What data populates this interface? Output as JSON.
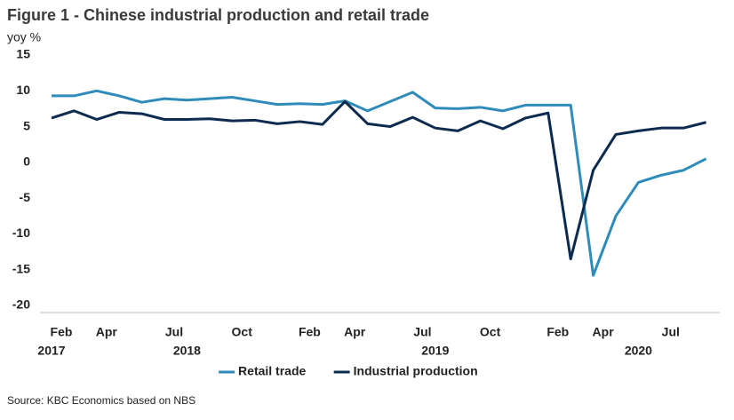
{
  "chart_data": {
    "type": "line",
    "title": "Figure 1 - Chinese industrial production and retail trade",
    "y_axis_label": "yoy %",
    "source": "Source: KBC Economics based on NBS",
    "categories": [
      "Feb",
      null,
      "Apr",
      null,
      null,
      "Jul",
      null,
      null,
      "Oct",
      null,
      null,
      "Feb",
      null,
      "Apr",
      null,
      null,
      "Jul",
      null,
      null,
      "Oct",
      null,
      null,
      "Feb",
      null,
      "Apr",
      null,
      null,
      "Jul",
      null,
      null
    ],
    "year_categories": [
      "2017",
      null,
      null,
      null,
      null,
      null,
      "2018",
      null,
      null,
      null,
      null,
      null,
      null,
      null,
      null,
      null,
      null,
      "2019",
      null,
      null,
      null,
      null,
      null,
      null,
      null,
      null,
      "2020",
      null,
      null,
      null
    ],
    "series": [
      {
        "name": "Retail trade",
        "color": "#2e8bba",
        "values": [
          9.3,
          9.3,
          10.0,
          9.3,
          8.4,
          8.9,
          8.7,
          8.9,
          9.1,
          8.6,
          8.1,
          8.2,
          8.1,
          8.6,
          7.2,
          8.5,
          9.8,
          7.6,
          7.5,
          7.7,
          7.2,
          8.0,
          8.0,
          8.0,
          -15.8,
          -7.5,
          -2.8,
          -1.8,
          -1.1,
          0.5
        ]
      },
      {
        "name": "Industrial production",
        "color": "#0d2a4f",
        "values": [
          6.2,
          7.2,
          6.0,
          7.0,
          6.8,
          6.0,
          6.0,
          6.1,
          5.8,
          5.9,
          5.4,
          5.7,
          5.3,
          8.5,
          5.4,
          5.0,
          6.3,
          4.8,
          4.4,
          5.8,
          4.7,
          6.2,
          6.9,
          -13.5,
          -1.1,
          3.9,
          4.4,
          4.8,
          4.8,
          5.6
        ]
      }
    ],
    "ylim": [
      -20,
      15
    ],
    "yticks": [
      -20,
      -15,
      -10,
      -5,
      0,
      5,
      10,
      15
    ],
    "grid": false,
    "legend": "bottom"
  }
}
